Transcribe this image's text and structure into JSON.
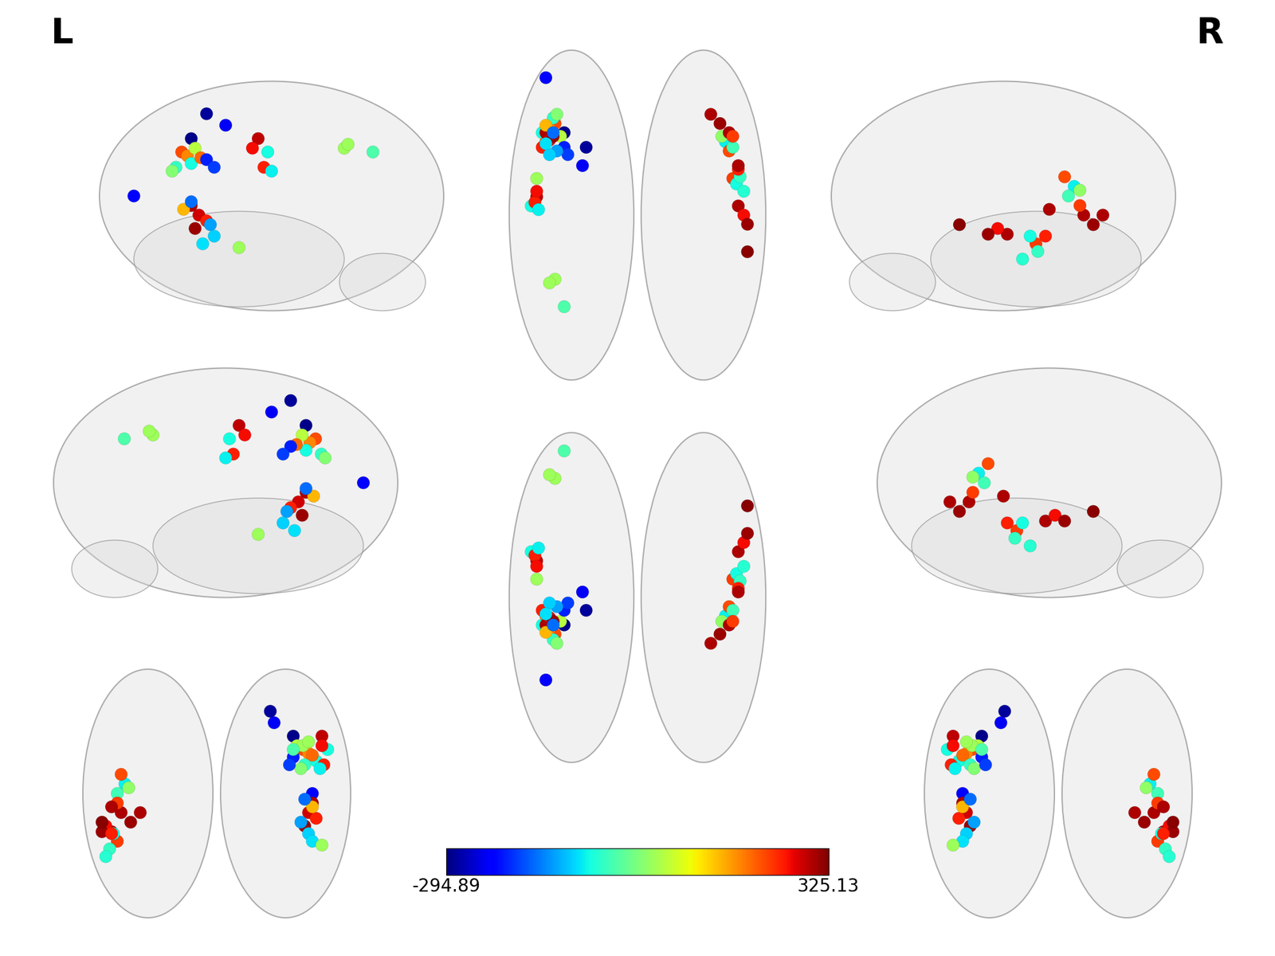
{
  "chart_data": {
    "type": "brain_network",
    "hemisphere_labels": [
      "L",
      "R"
    ],
    "nodes": {
      "x": [
        -28,
        -30,
        -40,
        -50,
        -45,
        -48,
        -42,
        -52,
        -50,
        -46,
        -44,
        -40,
        -38,
        -50,
        -48,
        -52,
        -46,
        -50,
        -44,
        -48,
        -50,
        -46,
        -55,
        -58,
        -56,
        -54,
        -55,
        -45,
        -48,
        -40,
        -55,
        55,
        58,
        60,
        52,
        54,
        56,
        58,
        55,
        48,
        50,
        52,
        46,
        50,
        45,
        52,
        40,
        55,
        60
      ],
      "y": [
        22,
        12,
        30,
        60,
        35,
        32,
        28,
        30,
        25,
        38,
        40,
        22,
        18,
        30,
        26,
        22,
        28,
        34,
        20,
        18,
        24,
        30,
        -5,
        -10,
        -8,
        -12,
        -2,
        -50,
        -52,
        -65,
        5,
        -10,
        -15,
        -20,
        5,
        2,
        6,
        -2,
        10,
        25,
        20,
        22,
        28,
        30,
        35,
        28,
        40,
        12,
        -35
      ],
      "z": [
        58,
        52,
        45,
        15,
        38,
        36,
        40,
        32,
        35,
        30,
        28,
        34,
        30,
        10,
        5,
        2,
        -2,
        8,
        0,
        -6,
        -10,
        12,
        45,
        38,
        30,
        28,
        40,
        40,
        42,
        38,
        -12,
        -5,
        -2,
        -5,
        -10,
        -6,
        -14,
        -18,
        -6,
        20,
        25,
        15,
        18,
        5,
        0,
        10,
        5,
        8,
        0
      ],
      "values": [
        -280,
        -230,
        -290,
        -220,
        220,
        180,
        60,
        -60,
        200,
        -40,
        20,
        -200,
        -180,
        300,
        280,
        250,
        310,
        150,
        -120,
        -90,
        -80,
        -150,
        290,
        -60,
        250,
        -70,
        260,
        40,
        40,
        -20,
        40,
        300,
        260,
        310,
        230,
        -60,
        -40,
        -50,
        250,
        -70,
        220,
        -30,
        30,
        300,
        310,
        230,
        300,
        300,
        320
      ]
    },
    "colorbar": {
      "range": [
        -294.89,
        325.13
      ],
      "ticks": [
        -294.89,
        325.13
      ]
    }
  }
}
